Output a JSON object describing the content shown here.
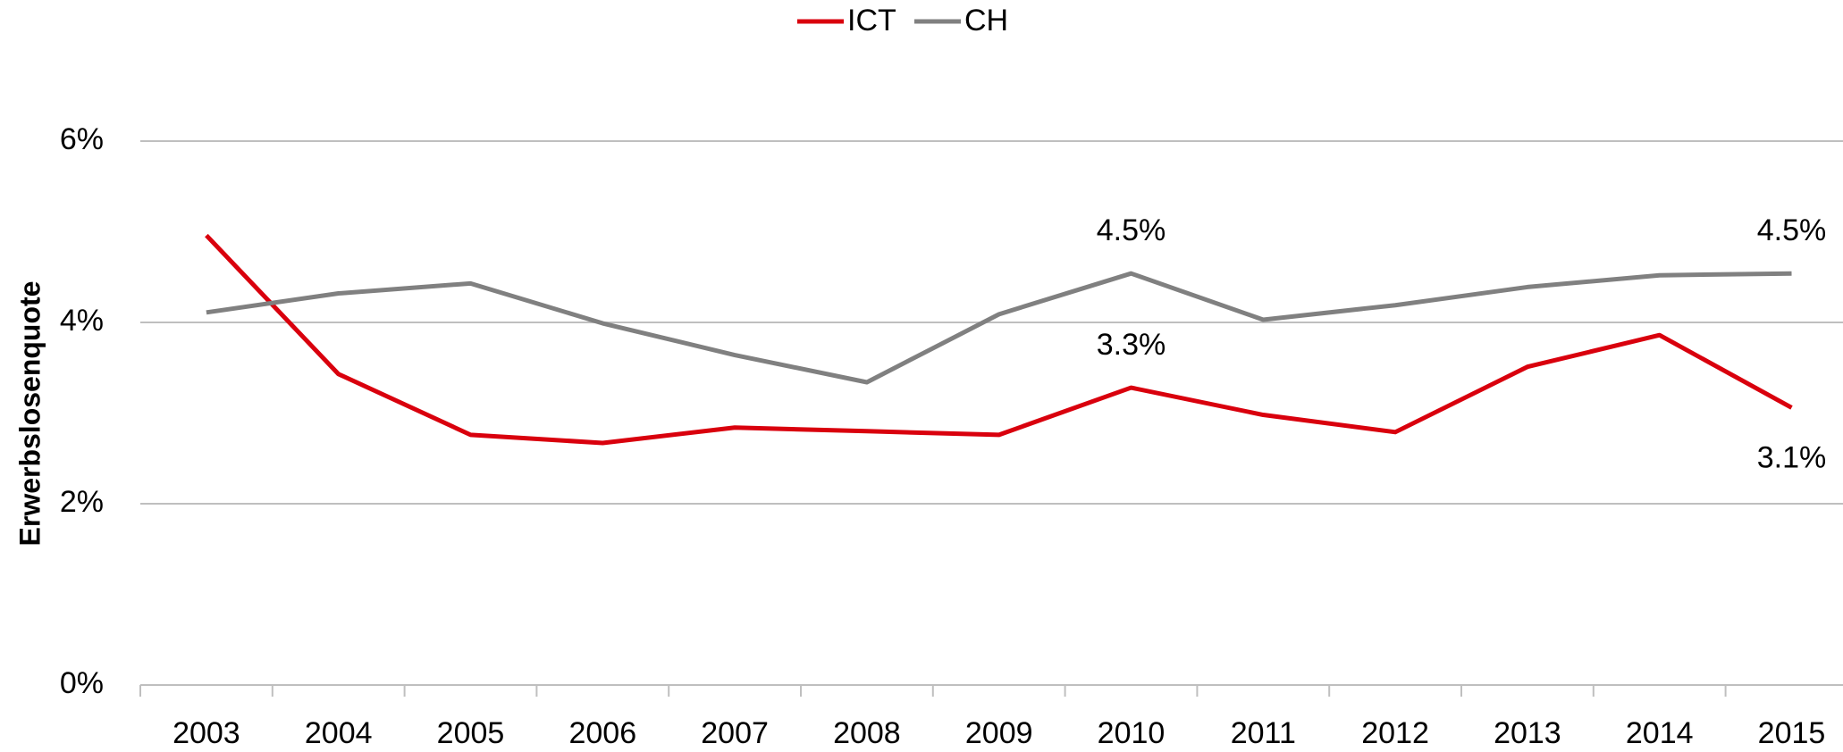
{
  "chart_data": {
    "type": "line",
    "y_label": "Erwerbslosenquote",
    "categories": [
      "2003",
      "2004",
      "2005",
      "2006",
      "2007",
      "2008",
      "2009",
      "2010",
      "2011",
      "2012",
      "2013",
      "2014",
      "2015"
    ],
    "series": [
      {
        "name": "ICT",
        "color": "#d9000d",
        "values": [
          4.96,
          3.43,
          2.76,
          2.67,
          2.84,
          2.8,
          2.76,
          3.28,
          2.98,
          2.79,
          3.51,
          3.86,
          3.06
        ],
        "value_labels": [
          null,
          null,
          null,
          null,
          null,
          null,
          null,
          "3.3%",
          null,
          null,
          null,
          null,
          "3.1%"
        ]
      },
      {
        "name": "CH",
        "color": "#808080",
        "values": [
          4.11,
          4.32,
          4.43,
          3.99,
          3.64,
          3.34,
          4.09,
          4.54,
          4.03,
          4.19,
          4.39,
          4.52,
          4.54
        ],
        "value_labels": [
          null,
          null,
          null,
          null,
          null,
          null,
          null,
          "4.5%",
          null,
          null,
          null,
          null,
          "4.5%"
        ]
      }
    ],
    "ylim": [
      0,
      6
    ],
    "yticks": [
      {
        "value": 0,
        "label": "0%"
      },
      {
        "value": 2,
        "label": "2%"
      },
      {
        "value": 4,
        "label": "4%"
      },
      {
        "value": 6,
        "label": "6%"
      }
    ],
    "grid": true,
    "legend": "top"
  }
}
